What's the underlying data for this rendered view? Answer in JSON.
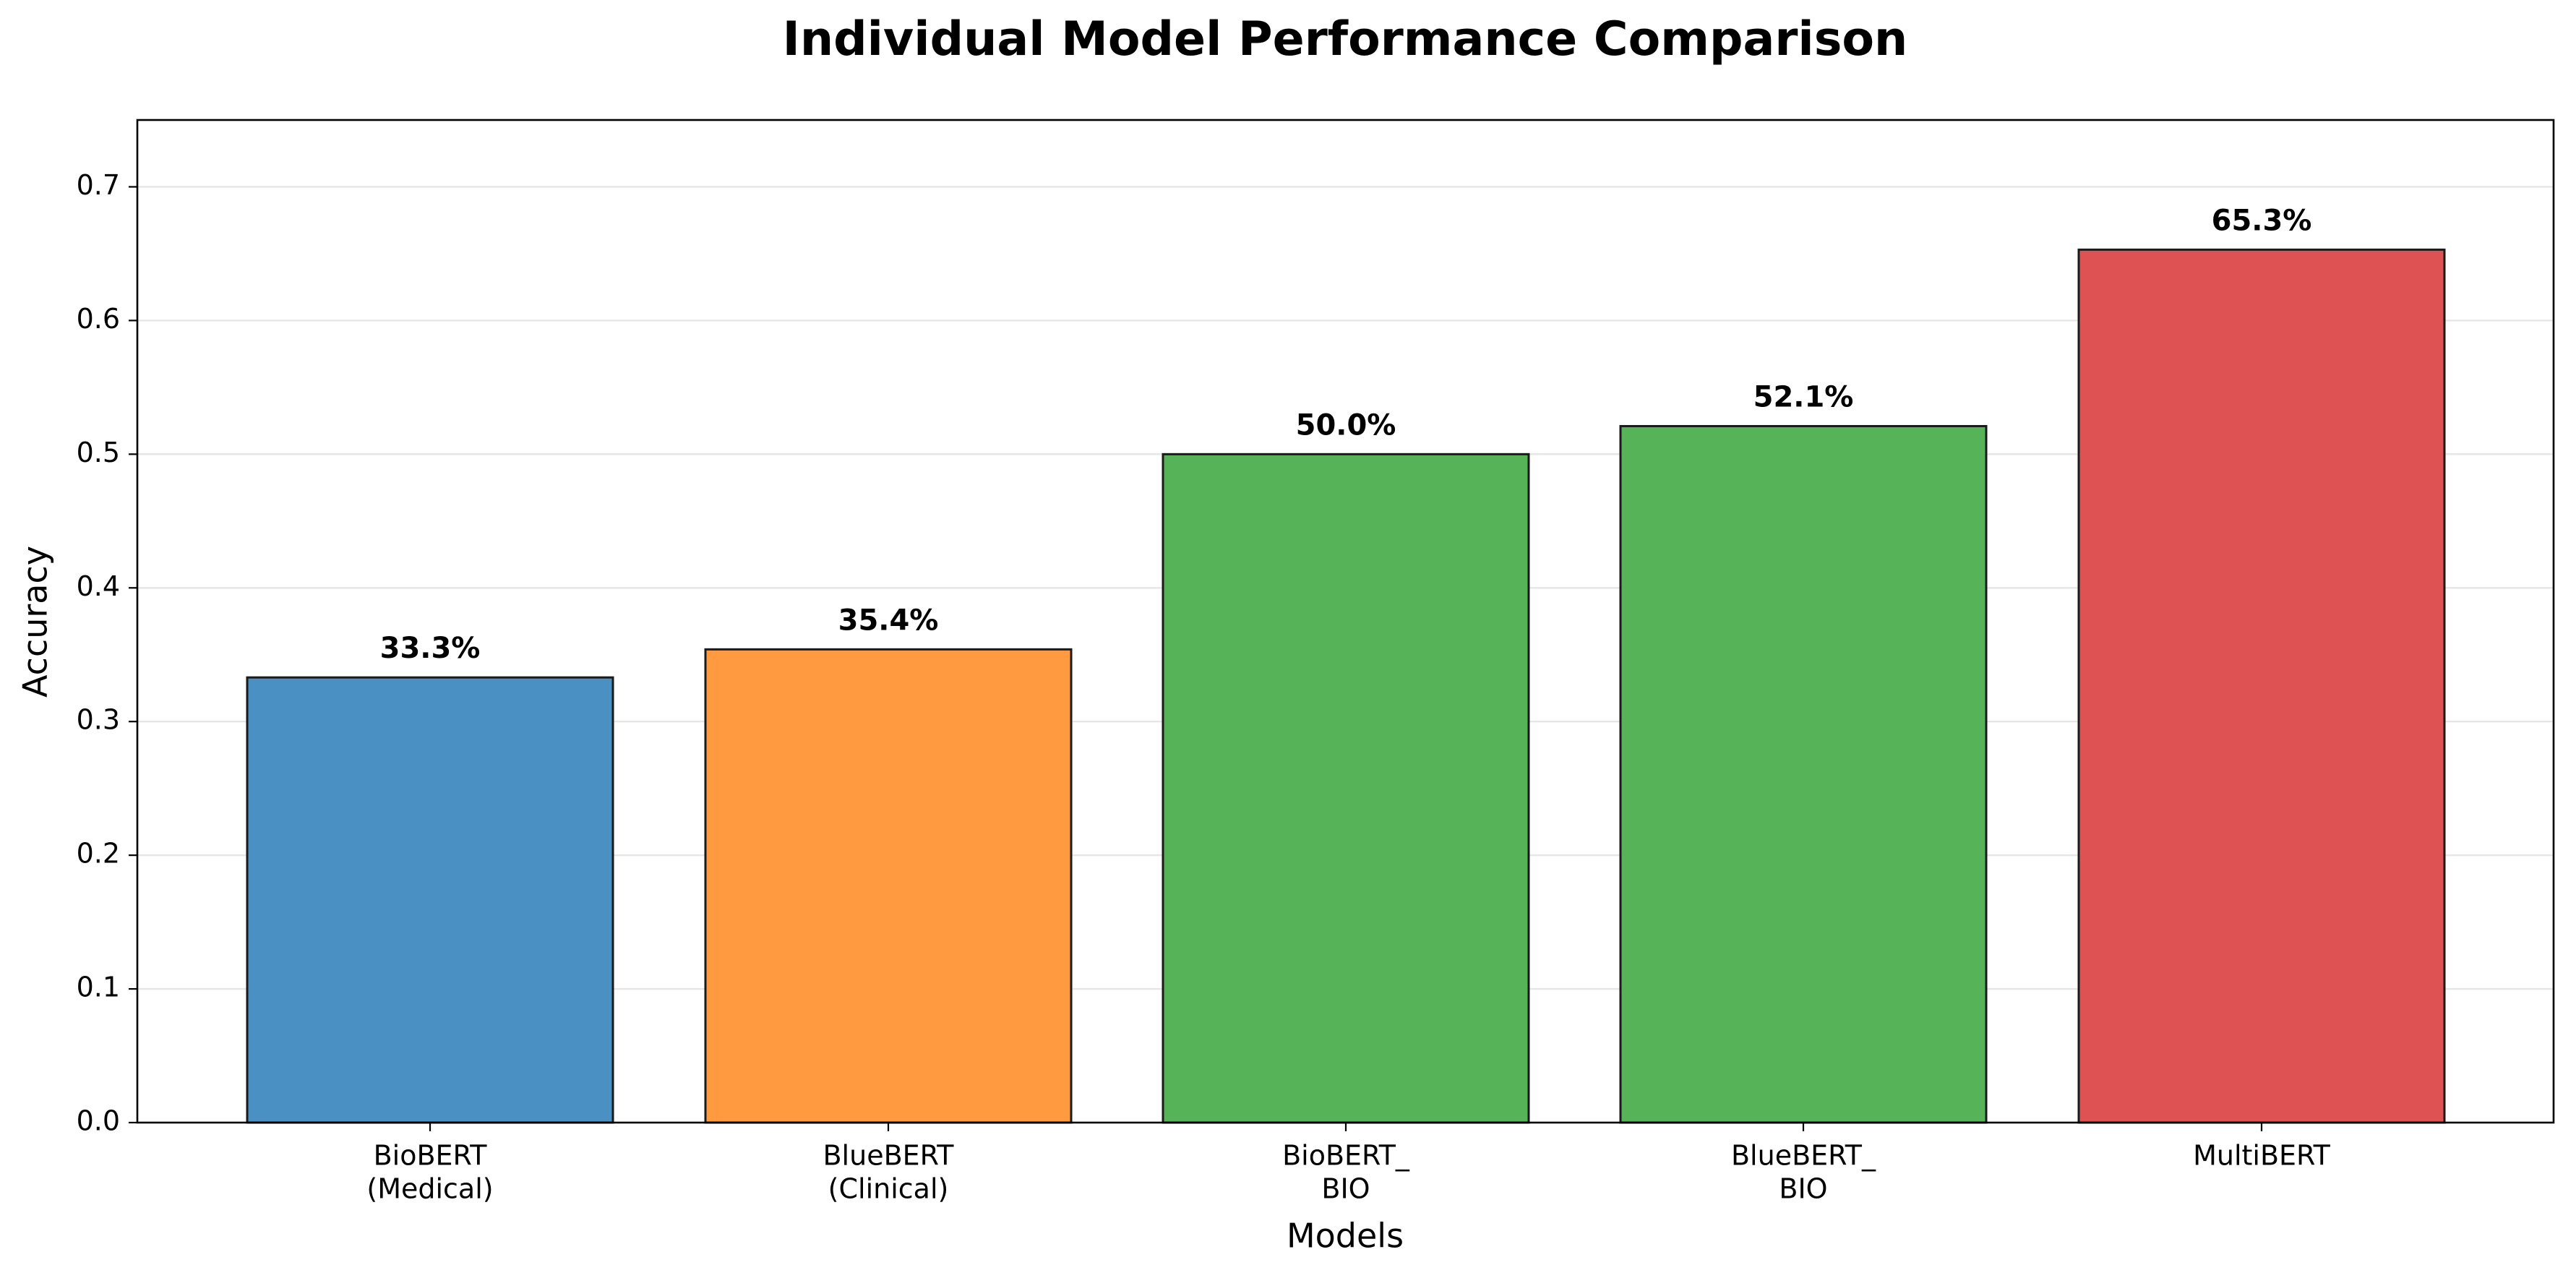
{
  "chart_data": {
    "type": "bar",
    "title": "Individual Model Performance Comparison",
    "xlabel": "Models",
    "ylabel": "Accuracy",
    "categories": [
      [
        "BioBERT",
        "(Medical)"
      ],
      [
        "BlueBERT",
        "(Clinical)"
      ],
      [
        "BioBERT_",
        "BIO"
      ],
      [
        "BlueBERT_",
        "BIO"
      ],
      [
        "MultiBERT"
      ]
    ],
    "values": [
      0.333,
      0.354,
      0.5,
      0.521,
      0.653
    ],
    "value_labels": [
      "33.3%",
      "35.4%",
      "50.0%",
      "52.1%",
      "65.3%"
    ],
    "bar_colors": [
      "#4a90c2",
      "#ff9a40",
      "#57b357",
      "#57b357",
      "#de5254"
    ],
    "edge_color": "#1a1a1a",
    "ylim": [
      0,
      0.75
    ],
    "yticks": [
      0.0,
      0.1,
      0.2,
      0.3,
      0.4,
      0.5,
      0.6,
      0.7
    ],
    "ytick_labels": [
      "0.0",
      "0.1",
      "0.2",
      "0.3",
      "0.4",
      "0.5",
      "0.6",
      "0.7"
    ],
    "grid": "horizontal",
    "grid_color": "#e6e6e6"
  }
}
